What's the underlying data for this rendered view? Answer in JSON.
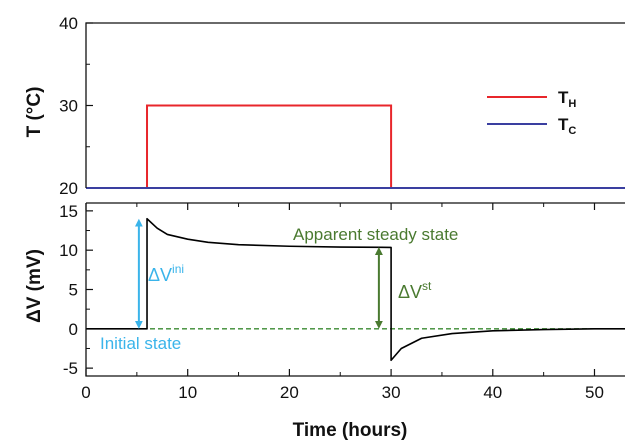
{
  "chart_data": [
    {
      "type": "line",
      "ylabel": "T (°C)",
      "ylim": [
        20,
        40
      ],
      "yticks": [
        20,
        30,
        40
      ],
      "ytick_labels": [
        "20",
        "30",
        "40"
      ],
      "xlim": [
        0,
        53
      ],
      "legend_placement": "top-right",
      "series": [
        {
          "name": "TH",
          "name_main": "T",
          "name_sub": "H",
          "color": "#e8262b",
          "x": [
            0,
            6,
            6,
            30,
            30,
            53
          ],
          "y": [
            20,
            20,
            30,
            30,
            20,
            20
          ]
        },
        {
          "name": "TC",
          "name_main": "T",
          "name_sub": "C",
          "color": "#3a3fa0",
          "x": [
            0,
            53
          ],
          "y": [
            20,
            20
          ]
        }
      ]
    },
    {
      "type": "line",
      "ylabel": "ΔV (mV)",
      "xlabel": "Time (hours)",
      "xlim": [
        0,
        53
      ],
      "ylim": [
        -6,
        16
      ],
      "yticks": [
        -5,
        0,
        5,
        10,
        15
      ],
      "ytick_labels": [
        "-5",
        "0",
        "5",
        "10",
        "15"
      ],
      "xticks": [
        0,
        10,
        20,
        30,
        40,
        50
      ],
      "xtick_labels": [
        "0",
        "10",
        "20",
        "30",
        "40",
        "50"
      ],
      "series": [
        {
          "name": "ΔV",
          "color": "#000000",
          "x": [
            0,
            6,
            6,
            7,
            8,
            10,
            12,
            15,
            20,
            25,
            30,
            30,
            31,
            33,
            36,
            40,
            45,
            50,
            53
          ],
          "y": [
            0,
            0,
            14,
            12.8,
            12.0,
            11.4,
            11.0,
            10.7,
            10.5,
            10.4,
            10.35,
            -4,
            -2.5,
            -1.2,
            -0.6,
            -0.25,
            -0.1,
            0,
            0
          ]
        }
      ],
      "reference_line": {
        "y": 0,
        "style": "dashed",
        "color": "#3a8a30"
      },
      "annotations": {
        "delta_v_ini": {
          "label_main": "ΔV",
          "label_sup": "ini",
          "color": "#3ab4ea",
          "x": 5.2,
          "y_from": 0,
          "y_to": 14
        },
        "delta_v_st": {
          "label_main": "ΔV",
          "label_sup": "st",
          "color": "#4a7a30",
          "x": 28.8,
          "y_from": 0,
          "y_to": 10.4
        },
        "apparent_steady_state": {
          "text": "Apparent steady state",
          "color": "#4a7a30"
        },
        "initial_state": {
          "text": "Initial state",
          "color": "#3ab4ea"
        }
      }
    }
  ]
}
